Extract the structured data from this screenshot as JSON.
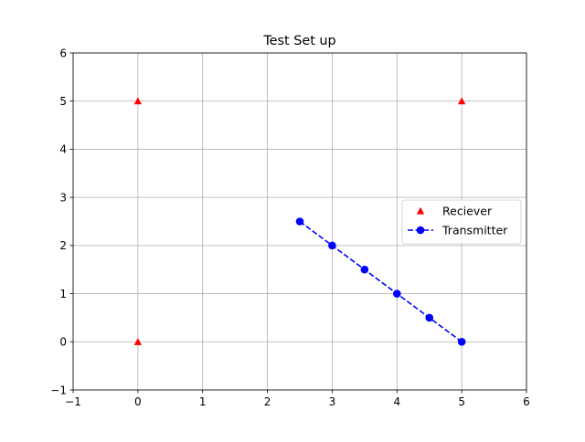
{
  "chart_data": {
    "type": "scatter",
    "title": "Test Set up",
    "xlabel": "",
    "ylabel": "",
    "xlim": [
      -1,
      6
    ],
    "ylim": [
      -1,
      6
    ],
    "xticks": [
      -1,
      0,
      1,
      2,
      3,
      4,
      5,
      6
    ],
    "yticks": [
      -1,
      0,
      1,
      2,
      3,
      4,
      5,
      6
    ],
    "xtick_labels": [
      "−1",
      "0",
      "1",
      "2",
      "3",
      "4",
      "5",
      "6"
    ],
    "ytick_labels": [
      "−1",
      "0",
      "1",
      "2",
      "3",
      "4",
      "5",
      "6"
    ],
    "grid": true,
    "legend_position": "center-right",
    "series": [
      {
        "name": "Reciever",
        "marker": "triangle-up",
        "line": "none",
        "color": "#ff0000",
        "x": [
          0,
          0,
          5
        ],
        "y": [
          0,
          5,
          5
        ]
      },
      {
        "name": "Transmitter",
        "marker": "circle",
        "line": "dashed",
        "color": "#0000ff",
        "x": [
          2.5,
          3,
          3.5,
          4,
          4.5,
          5
        ],
        "y": [
          2.5,
          2,
          1.5,
          1,
          0.5,
          0
        ]
      }
    ]
  }
}
